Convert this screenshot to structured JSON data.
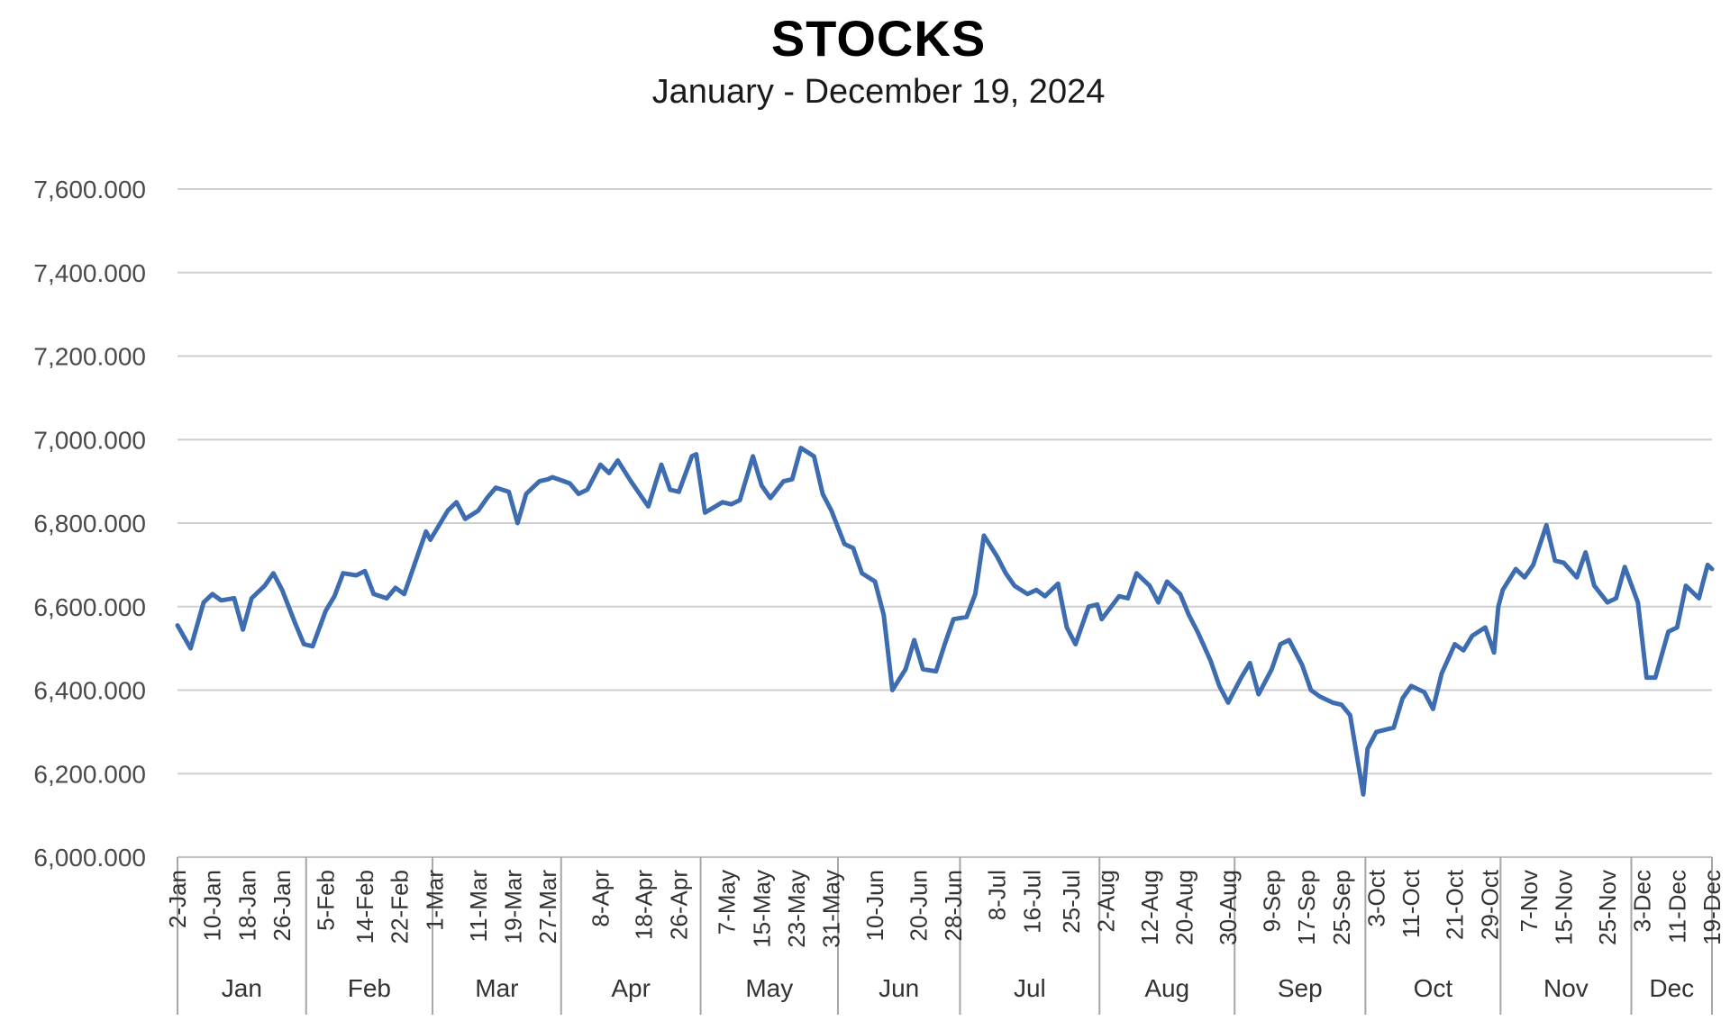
{
  "chart_data": {
    "type": "line",
    "title": "STOCKS",
    "subtitle": "January - December 19, 2024",
    "ylim": [
      6000,
      7600
    ],
    "yticks": [
      6000,
      6200,
      6400,
      6600,
      6800,
      7000,
      7200,
      7400,
      7600
    ],
    "ytick_labels": [
      "6,000.000",
      "6,200.000",
      "6,400.000",
      "6,600.000",
      "6,800.000",
      "7,000.000",
      "7,200.000",
      "7,400.000",
      "7,600.000"
    ],
    "grid": true,
    "legend": "none",
    "color": "#3d6cb0",
    "x_tick_labels": [
      "2-Jan",
      "10-Jan",
      "18-Jan",
      "26-Jan",
      "5-Feb",
      "14-Feb",
      "22-Feb",
      "1-Mar",
      "11-Mar",
      "19-Mar",
      "27-Mar",
      "8-Apr",
      "18-Apr",
      "26-Apr",
      "7-May",
      "15-May",
      "23-May",
      "31-May",
      "10-Jun",
      "20-Jun",
      "28-Jun",
      "8-Jul",
      "16-Jul",
      "25-Jul",
      "2-Aug",
      "12-Aug",
      "20-Aug",
      "30-Aug",
      "9-Sep",
      "17-Sep",
      "25-Sep",
      "3-Oct",
      "11-Oct",
      "21-Oct",
      "29-Oct",
      "7-Nov",
      "15-Nov",
      "25-Nov",
      "3-Dec",
      "11-Dec",
      "19-Dec"
    ],
    "months": [
      {
        "label": "Jan",
        "start": "2024-01-02",
        "end": "2024-01-31"
      },
      {
        "label": "Feb",
        "start": "2024-02-01",
        "end": "2024-02-29"
      },
      {
        "label": "Mar",
        "start": "2024-03-01",
        "end": "2024-03-28"
      },
      {
        "label": "Apr",
        "start": "2024-04-01",
        "end": "2024-04-30"
      },
      {
        "label": "May",
        "start": "2024-05-02",
        "end": "2024-05-31"
      },
      {
        "label": "Jun",
        "start": "2024-06-03",
        "end": "2024-06-28"
      },
      {
        "label": "Jul",
        "start": "2024-07-01",
        "end": "2024-07-31"
      },
      {
        "label": "Aug",
        "start": "2024-08-01",
        "end": "2024-08-30"
      },
      {
        "label": "Sep",
        "start": "2024-09-02",
        "end": "2024-09-30"
      },
      {
        "label": "Oct",
        "start": "2024-10-01",
        "end": "2024-10-31"
      },
      {
        "label": "Nov",
        "start": "2024-11-01",
        "end": "2024-11-29"
      },
      {
        "label": "Dec",
        "start": "2024-12-02",
        "end": "2024-12-19"
      }
    ],
    "points": [
      [
        "2024-01-02",
        6555
      ],
      [
        "2024-01-05",
        6500
      ],
      [
        "2024-01-08",
        6610
      ],
      [
        "2024-01-10",
        6630
      ],
      [
        "2024-01-12",
        6615
      ],
      [
        "2024-01-15",
        6620
      ],
      [
        "2024-01-17",
        6545
      ],
      [
        "2024-01-19",
        6620
      ],
      [
        "2024-01-22",
        6650
      ],
      [
        "2024-01-24",
        6680
      ],
      [
        "2024-01-26",
        6640
      ],
      [
        "2024-01-29",
        6560
      ],
      [
        "2024-01-31",
        6510
      ],
      [
        "2024-02-02",
        6505
      ],
      [
        "2024-02-05",
        6590
      ],
      [
        "2024-02-07",
        6625
      ],
      [
        "2024-02-09",
        6680
      ],
      [
        "2024-02-12",
        6675
      ],
      [
        "2024-02-14",
        6685
      ],
      [
        "2024-02-16",
        6630
      ],
      [
        "2024-02-19",
        6620
      ],
      [
        "2024-02-21",
        6645
      ],
      [
        "2024-02-23",
        6630
      ],
      [
        "2024-02-26",
        6720
      ],
      [
        "2024-02-28",
        6780
      ],
      [
        "2024-02-29",
        6760
      ],
      [
        "2024-03-04",
        6830
      ],
      [
        "2024-03-06",
        6850
      ],
      [
        "2024-03-08",
        6810
      ],
      [
        "2024-03-11",
        6830
      ],
      [
        "2024-03-13",
        6860
      ],
      [
        "2024-03-15",
        6885
      ],
      [
        "2024-03-18",
        6875
      ],
      [
        "2024-03-20",
        6800
      ],
      [
        "2024-03-22",
        6870
      ],
      [
        "2024-03-25",
        6900
      ],
      [
        "2024-03-27",
        6905
      ],
      [
        "2024-03-28",
        6910
      ],
      [
        "2024-04-01",
        6895
      ],
      [
        "2024-04-03",
        6870
      ],
      [
        "2024-04-05",
        6880
      ],
      [
        "2024-04-08",
        6940
      ],
      [
        "2024-04-10",
        6920
      ],
      [
        "2024-04-12",
        6950
      ],
      [
        "2024-04-15",
        6900
      ],
      [
        "2024-04-17",
        6870
      ],
      [
        "2024-04-19",
        6840
      ],
      [
        "2024-04-22",
        6940
      ],
      [
        "2024-04-24",
        6880
      ],
      [
        "2024-04-26",
        6875
      ],
      [
        "2024-04-29",
        6960
      ],
      [
        "2024-04-30",
        6965
      ],
      [
        "2024-05-02",
        6825
      ],
      [
        "2024-05-06",
        6850
      ],
      [
        "2024-05-08",
        6845
      ],
      [
        "2024-05-10",
        6855
      ],
      [
        "2024-05-13",
        6960
      ],
      [
        "2024-05-15",
        6890
      ],
      [
        "2024-05-17",
        6860
      ],
      [
        "2024-05-20",
        6900
      ],
      [
        "2024-05-22",
        6905
      ],
      [
        "2024-05-24",
        6980
      ],
      [
        "2024-05-27",
        6960
      ],
      [
        "2024-05-29",
        6870
      ],
      [
        "2024-05-31",
        6830
      ],
      [
        "2024-06-03",
        6750
      ],
      [
        "2024-06-05",
        6740
      ],
      [
        "2024-06-07",
        6680
      ],
      [
        "2024-06-10",
        6660
      ],
      [
        "2024-06-12",
        6580
      ],
      [
        "2024-06-14",
        6400
      ],
      [
        "2024-06-17",
        6450
      ],
      [
        "2024-06-19",
        6520
      ],
      [
        "2024-06-21",
        6450
      ],
      [
        "2024-06-24",
        6445
      ],
      [
        "2024-06-26",
        6510
      ],
      [
        "2024-06-28",
        6570
      ],
      [
        "2024-07-01",
        6575
      ],
      [
        "2024-07-03",
        6630
      ],
      [
        "2024-07-05",
        6770
      ],
      [
        "2024-07-08",
        6720
      ],
      [
        "2024-07-10",
        6680
      ],
      [
        "2024-07-12",
        6650
      ],
      [
        "2024-07-15",
        6630
      ],
      [
        "2024-07-17",
        6640
      ],
      [
        "2024-07-19",
        6625
      ],
      [
        "2024-07-22",
        6655
      ],
      [
        "2024-07-24",
        6550
      ],
      [
        "2024-07-26",
        6510
      ],
      [
        "2024-07-29",
        6600
      ],
      [
        "2024-07-31",
        6605
      ],
      [
        "2024-08-01",
        6570
      ],
      [
        "2024-08-05",
        6625
      ],
      [
        "2024-08-07",
        6620
      ],
      [
        "2024-08-09",
        6680
      ],
      [
        "2024-08-12",
        6650
      ],
      [
        "2024-08-14",
        6610
      ],
      [
        "2024-08-16",
        6660
      ],
      [
        "2024-08-19",
        6630
      ],
      [
        "2024-08-21",
        6580
      ],
      [
        "2024-08-23",
        6540
      ],
      [
        "2024-08-26",
        6470
      ],
      [
        "2024-08-28",
        6410
      ],
      [
        "2024-08-30",
        6370
      ],
      [
        "2024-09-02",
        6430
      ],
      [
        "2024-09-04",
        6465
      ],
      [
        "2024-09-06",
        6390
      ],
      [
        "2024-09-09",
        6450
      ],
      [
        "2024-09-11",
        6510
      ],
      [
        "2024-09-13",
        6520
      ],
      [
        "2024-09-16",
        6460
      ],
      [
        "2024-09-18",
        6400
      ],
      [
        "2024-09-20",
        6385
      ],
      [
        "2024-09-23",
        6370
      ],
      [
        "2024-09-25",
        6365
      ],
      [
        "2024-09-27",
        6340
      ],
      [
        "2024-09-30",
        6150
      ],
      [
        "2024-10-01",
        6260
      ],
      [
        "2024-10-03",
        6300
      ],
      [
        "2024-10-07",
        6310
      ],
      [
        "2024-10-09",
        6380
      ],
      [
        "2024-10-11",
        6410
      ],
      [
        "2024-10-14",
        6395
      ],
      [
        "2024-10-16",
        6355
      ],
      [
        "2024-10-18",
        6440
      ],
      [
        "2024-10-21",
        6510
      ],
      [
        "2024-10-23",
        6495
      ],
      [
        "2024-10-25",
        6530
      ],
      [
        "2024-10-28",
        6550
      ],
      [
        "2024-10-30",
        6490
      ],
      [
        "2024-10-31",
        6600
      ],
      [
        "2024-11-01",
        6640
      ],
      [
        "2024-11-04",
        6690
      ],
      [
        "2024-11-06",
        6670
      ],
      [
        "2024-11-08",
        6700
      ],
      [
        "2024-11-11",
        6795
      ],
      [
        "2024-11-13",
        6710
      ],
      [
        "2024-11-15",
        6705
      ],
      [
        "2024-11-18",
        6670
      ],
      [
        "2024-11-20",
        6730
      ],
      [
        "2024-11-22",
        6650
      ],
      [
        "2024-11-25",
        6610
      ],
      [
        "2024-11-27",
        6620
      ],
      [
        "2024-11-29",
        6695
      ],
      [
        "2024-12-02",
        6610
      ],
      [
        "2024-12-04",
        6430
      ],
      [
        "2024-12-06",
        6430
      ],
      [
        "2024-12-09",
        6540
      ],
      [
        "2024-12-11",
        6550
      ],
      [
        "2024-12-13",
        6650
      ],
      [
        "2024-12-16",
        6620
      ],
      [
        "2024-12-17",
        6660
      ],
      [
        "2024-12-18",
        6700
      ],
      [
        "2024-12-19",
        6690
      ]
    ]
  }
}
